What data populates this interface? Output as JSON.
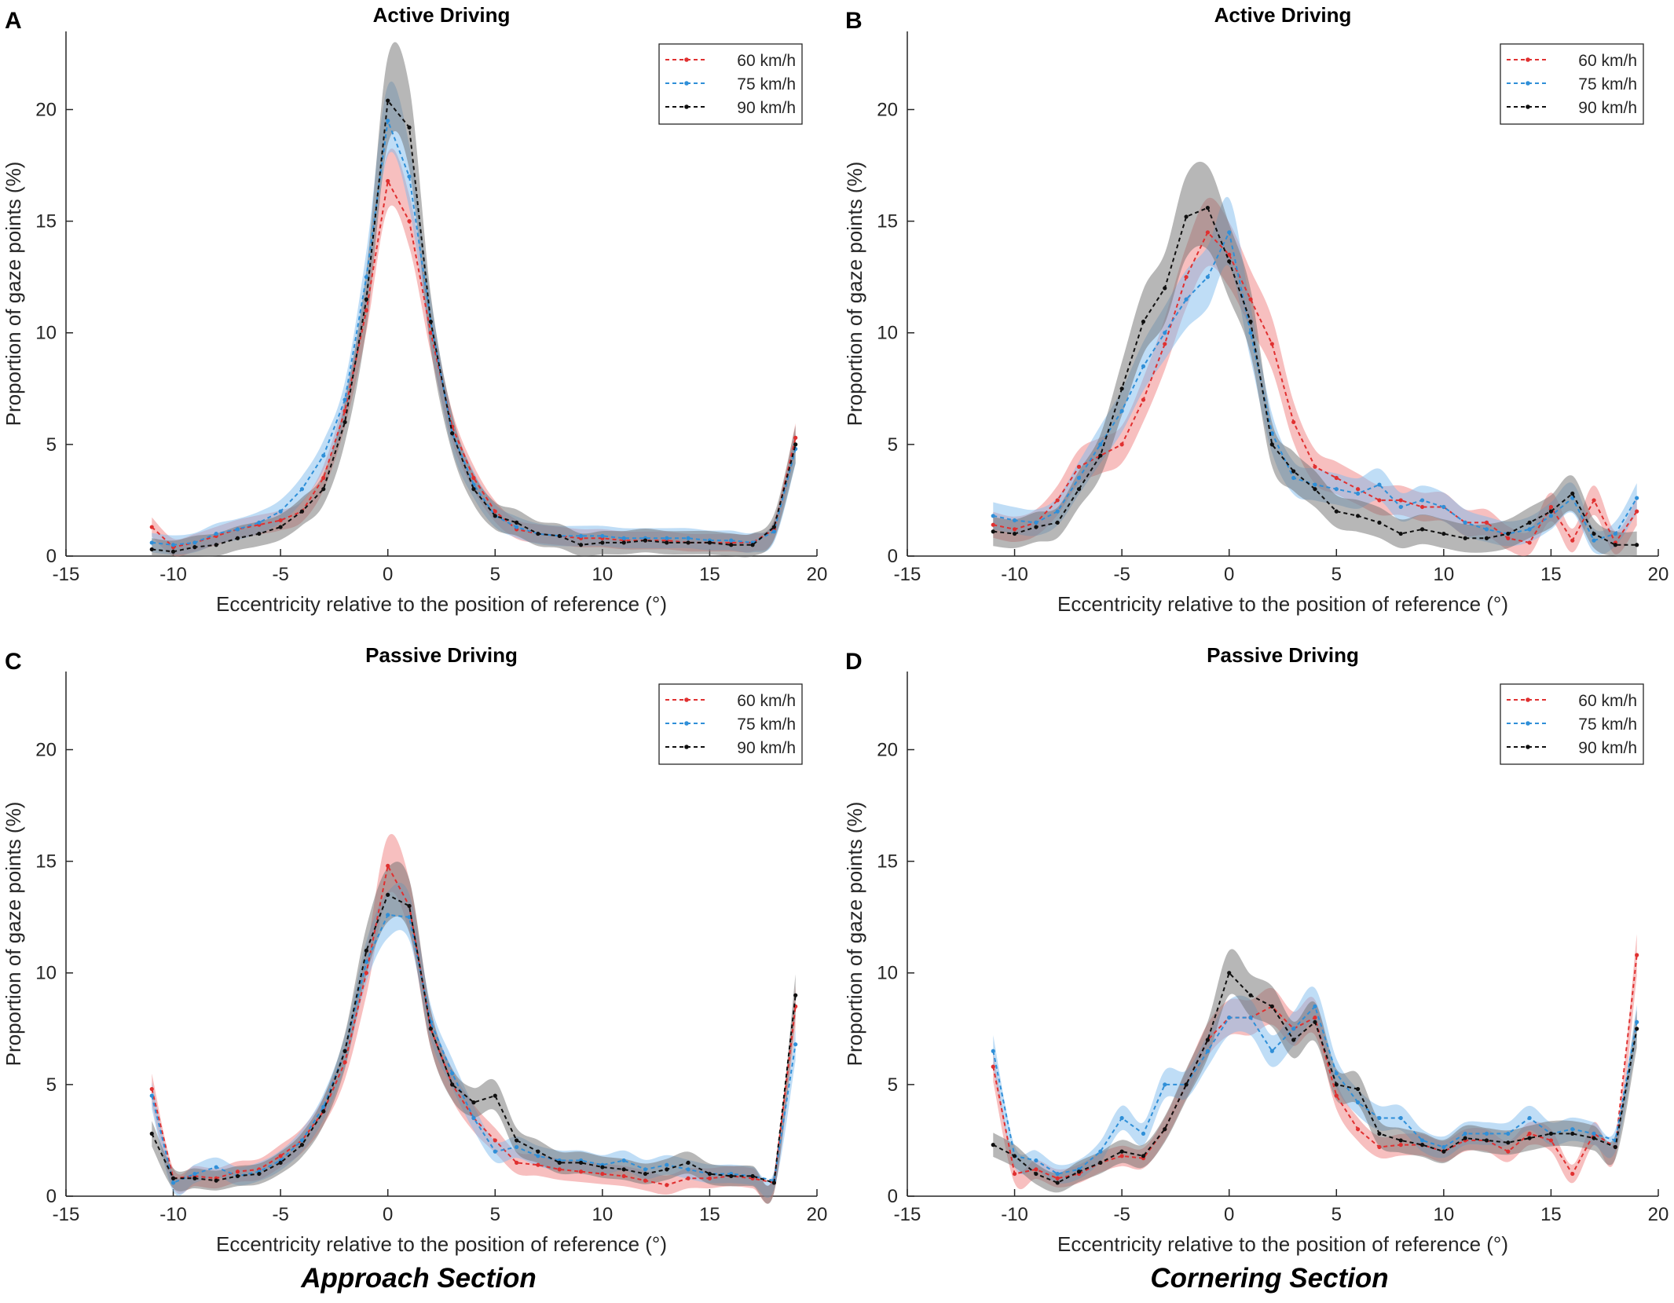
{
  "colors": {
    "s60": "#e03030",
    "s75": "#2f8fd8",
    "s90": "#101010",
    "band60": "#f08080",
    "band75": "#7fbcee",
    "band90": "#707070"
  },
  "section_labels": {
    "left": "Approach Section",
    "right": "Cornering Section"
  },
  "chart_data": [
    {
      "type": "line",
      "panel": "A",
      "title": "Active Driving",
      "xlabel": "Eccentricity relative to the position of reference (°)",
      "ylabel": "Proportion of gaze points (%)",
      "xlim": [
        -15,
        20
      ],
      "ylim": [
        0,
        23.5
      ],
      "xticks": [
        "-15",
        "-10",
        "-5",
        "0",
        "5",
        "10",
        "15",
        "20"
      ],
      "yticks": [
        "0",
        "5",
        "10",
        "15",
        "20"
      ],
      "legend_position": "top-right",
      "x": [
        -11,
        -10,
        -9,
        -8,
        -7,
        -6,
        -5,
        -4,
        -3,
        -2,
        -1,
        0,
        1,
        2,
        3,
        4,
        5,
        6,
        7,
        8,
        9,
        10,
        11,
        12,
        13,
        14,
        15,
        16,
        17,
        18,
        19
      ],
      "series": [
        {
          "name": "60 km/h",
          "values": [
            1.3,
            0.4,
            0.6,
            0.9,
            1.2,
            1.4,
            1.6,
            2.0,
            3.5,
            6.5,
            11.0,
            16.8,
            15.0,
            10.0,
            5.8,
            3.5,
            2.0,
            1.2,
            1.0,
            0.9,
            0.8,
            0.8,
            0.7,
            0.7,
            0.7,
            0.6,
            0.6,
            0.6,
            0.6,
            1.2,
            5.3
          ],
          "band": 0.9
        },
        {
          "name": "75 km/h",
          "values": [
            0.6,
            0.5,
            0.6,
            1.0,
            1.2,
            1.5,
            2.0,
            3.0,
            4.5,
            7.0,
            12.5,
            19.5,
            17.0,
            10.5,
            5.5,
            3.2,
            1.8,
            1.3,
            1.0,
            0.9,
            0.9,
            0.9,
            0.8,
            0.8,
            0.8,
            0.8,
            0.7,
            0.7,
            0.6,
            1.1,
            4.8
          ],
          "band": 1.0
        },
        {
          "name": "90 km/h",
          "values": [
            0.3,
            0.2,
            0.4,
            0.5,
            0.8,
            1.0,
            1.3,
            2.0,
            3.0,
            6.0,
            11.5,
            20.4,
            19.2,
            10.5,
            5.5,
            3.0,
            1.8,
            1.5,
            1.0,
            0.9,
            0.5,
            0.6,
            0.6,
            0.7,
            0.6,
            0.6,
            0.6,
            0.5,
            0.5,
            1.3,
            5.0
          ],
          "band": 1.2
        }
      ]
    },
    {
      "type": "line",
      "panel": "B",
      "title": "Active Driving",
      "xlabel": "Eccentricity relative to the position of reference (°)",
      "ylabel": "Proportion of gaze points (%)",
      "xlim": [
        -15,
        20
      ],
      "ylim": [
        0,
        23.5
      ],
      "xticks": [
        "-15",
        "-10",
        "-5",
        "0",
        "5",
        "10",
        "15",
        "20"
      ],
      "yticks": [
        "0",
        "5",
        "10",
        "15",
        "20"
      ],
      "legend_position": "top-right",
      "x": [
        -11,
        -10,
        -9,
        -8,
        -7,
        -6,
        -5,
        -4,
        -3,
        -2,
        -1,
        0,
        1,
        2,
        3,
        4,
        5,
        6,
        7,
        8,
        9,
        10,
        11,
        12,
        13,
        14,
        15,
        16,
        17,
        18,
        19
      ],
      "series": [
        {
          "name": "60 km/h",
          "values": [
            1.4,
            1.2,
            1.5,
            2.5,
            4.0,
            4.5,
            5.0,
            7.0,
            9.5,
            12.5,
            14.5,
            13.5,
            11.5,
            9.5,
            6.0,
            4.0,
            3.5,
            3.0,
            2.5,
            2.5,
            2.2,
            2.2,
            1.5,
            1.5,
            0.8,
            0.6,
            2.2,
            0.7,
            2.5,
            0.6,
            2.0
          ],
          "band": 1.2
        },
        {
          "name": "75 km/h",
          "values": [
            1.8,
            1.6,
            1.5,
            2.0,
            3.5,
            5.0,
            6.5,
            8.5,
            10.0,
            11.5,
            12.5,
            14.5,
            10.0,
            5.5,
            3.5,
            3.2,
            3.0,
            2.8,
            3.2,
            2.2,
            2.5,
            2.2,
            1.5,
            1.2,
            1.0,
            1.2,
            1.8,
            2.6,
            0.7,
            1.0,
            2.6
          ],
          "band": 1.2
        },
        {
          "name": "90 km/h",
          "values": [
            1.1,
            1.0,
            1.3,
            1.5,
            3.0,
            4.5,
            7.5,
            10.5,
            12.0,
            15.2,
            15.6,
            13.2,
            10.5,
            5.0,
            3.8,
            3.0,
            2.0,
            1.8,
            1.5,
            1.0,
            1.2,
            1.0,
            0.8,
            0.8,
            1.0,
            1.5,
            2.0,
            2.8,
            1.0,
            0.5,
            0.5
          ],
          "band": 1.4
        }
      ]
    },
    {
      "type": "line",
      "panel": "C",
      "title": "Passive Driving",
      "xlabel": "Eccentricity relative to the position of reference (°)",
      "ylabel": "Proportion of gaze points (%)",
      "xlim": [
        -15,
        20
      ],
      "ylim": [
        0,
        23.5
      ],
      "xticks": [
        "-15",
        "-10",
        "-5",
        "0",
        "5",
        "10",
        "15",
        "20"
      ],
      "yticks": [
        "0",
        "5",
        "10",
        "15",
        "20"
      ],
      "legend_position": "top-right",
      "x": [
        -11,
        -10,
        -9,
        -8,
        -7,
        -6,
        -5,
        -4,
        -3,
        -2,
        -1,
        0,
        1,
        2,
        3,
        4,
        5,
        6,
        7,
        8,
        9,
        10,
        11,
        12,
        13,
        14,
        15,
        16,
        17,
        18,
        19
      ],
      "series": [
        {
          "name": "60 km/h",
          "values": [
            4.8,
            0.8,
            0.9,
            0.8,
            1.1,
            1.2,
            1.8,
            2.5,
            3.8,
            6.0,
            10.0,
            14.8,
            13.0,
            7.5,
            5.0,
            3.5,
            2.5,
            1.5,
            1.4,
            1.2,
            1.1,
            1.0,
            0.9,
            0.7,
            0.5,
            0.8,
            0.8,
            0.9,
            0.8,
            0.6,
            8.5
          ],
          "band": 1.0
        },
        {
          "name": "75 km/h",
          "values": [
            4.5,
            0.6,
            1.0,
            1.3,
            0.9,
            1.1,
            1.6,
            2.5,
            4.0,
            6.5,
            10.5,
            12.6,
            12.5,
            7.8,
            5.5,
            3.5,
            2.0,
            2.2,
            1.8,
            1.6,
            1.6,
            1.4,
            1.6,
            1.2,
            1.4,
            1.2,
            1.0,
            1.0,
            0.9,
            0.7,
            6.8
          ],
          "band": 0.9
        },
        {
          "name": "90 km/h",
          "values": [
            2.8,
            0.8,
            0.8,
            0.7,
            0.9,
            1.0,
            1.5,
            2.3,
            3.8,
            6.5,
            11.0,
            13.5,
            13.0,
            7.5,
            5.0,
            4.2,
            4.5,
            2.5,
            2.0,
            1.5,
            1.5,
            1.3,
            1.2,
            1.0,
            1.2,
            1.5,
            1.0,
            0.9,
            0.9,
            0.6,
            9.0
          ],
          "band": 1.0
        }
      ]
    },
    {
      "type": "line",
      "panel": "D",
      "title": "Passive Driving",
      "xlabel": "Eccentricity relative to the position of reference (°)",
      "ylabel": "Proportion of gaze points (%)",
      "xlim": [
        -15,
        20
      ],
      "ylim": [
        0,
        23.5
      ],
      "xticks": [
        "-15",
        "-10",
        "-5",
        "0",
        "5",
        "10",
        "15",
        "20"
      ],
      "yticks": [
        "0",
        "5",
        "10",
        "15",
        "20"
      ],
      "legend_position": "top-right",
      "x": [
        -11,
        -10,
        -9,
        -8,
        -7,
        -6,
        -5,
        -4,
        -3,
        -2,
        -1,
        0,
        1,
        2,
        3,
        4,
        5,
        6,
        7,
        8,
        9,
        10,
        11,
        12,
        13,
        14,
        15,
        16,
        17,
        18,
        19
      ],
      "series": [
        {
          "name": "60 km/h",
          "values": [
            5.8,
            1.0,
            1.2,
            0.8,
            1.0,
            1.5,
            1.8,
            1.7,
            3.0,
            5.0,
            7.0,
            8.0,
            8.0,
            8.5,
            7.5,
            8.0,
            4.5,
            3.0,
            2.2,
            2.3,
            2.3,
            2.0,
            2.5,
            2.5,
            2.0,
            2.8,
            2.5,
            1.0,
            2.8,
            2.2,
            10.8
          ],
          "band": 0.9
        },
        {
          "name": "75 km/h",
          "values": [
            6.5,
            1.8,
            1.6,
            1.0,
            1.2,
            2.0,
            3.5,
            2.8,
            5.0,
            5.0,
            6.5,
            8.0,
            8.0,
            6.5,
            7.5,
            8.5,
            5.5,
            4.2,
            3.5,
            3.5,
            2.5,
            2.2,
            2.8,
            2.8,
            2.8,
            3.5,
            2.8,
            3.0,
            2.8,
            2.5,
            7.8
          ],
          "band": 0.9
        },
        {
          "name": "90 km/h",
          "values": [
            2.3,
            1.8,
            1.0,
            0.6,
            1.1,
            1.5,
            2.0,
            1.8,
            3.0,
            5.0,
            7.0,
            10.0,
            9.0,
            8.5,
            7.0,
            7.8,
            5.0,
            4.8,
            2.8,
            2.5,
            2.3,
            2.0,
            2.6,
            2.5,
            2.4,
            2.6,
            2.8,
            2.8,
            2.6,
            2.2,
            7.5
          ],
          "band": 1.0
        }
      ]
    }
  ]
}
